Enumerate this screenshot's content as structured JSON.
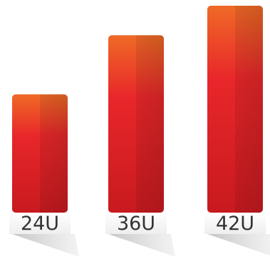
{
  "colors": {
    "bar_top": "#ef6a26",
    "bar_mid": "#e8272a",
    "bar_bottom": "#c81a1f",
    "label_text": "#333333",
    "shadow": "#d9d9d9"
  },
  "chart_data": {
    "type": "bar",
    "title": "",
    "xlabel": "",
    "ylabel": "",
    "categories": [
      "24U",
      "36U",
      "42U"
    ],
    "values": [
      24,
      36,
      42
    ],
    "ylim": [
      0,
      42
    ],
    "grid": false,
    "legend": "none"
  }
}
